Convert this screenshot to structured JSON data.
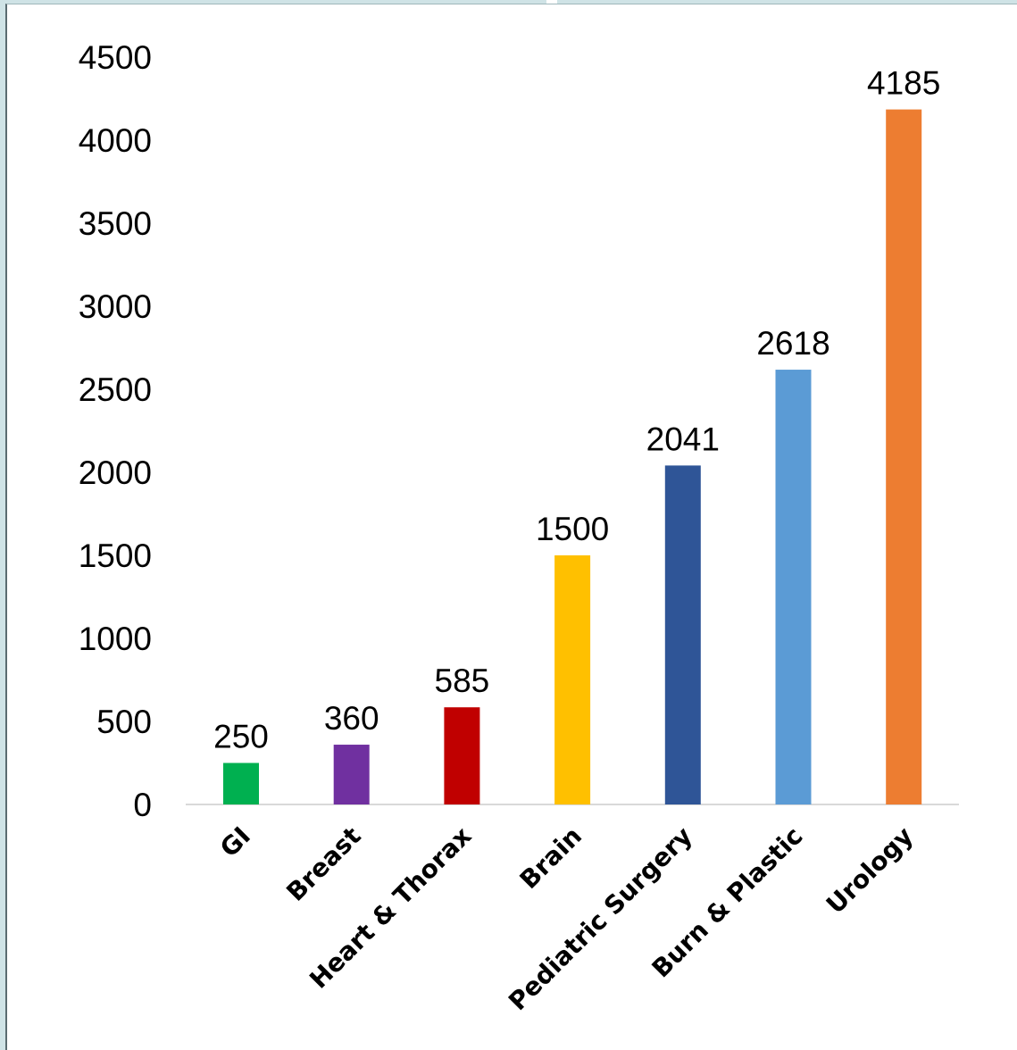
{
  "chart_data": {
    "type": "bar",
    "title": "",
    "xlabel": "",
    "ylabel": "",
    "categories": [
      "GI",
      "Breast",
      "Heart & Thorax",
      "Brain",
      "Pediatric Surgery",
      "Burn & Plastic",
      "Urology"
    ],
    "values": [
      250,
      360,
      585,
      1500,
      2041,
      2618,
      4185
    ],
    "data_labels": [
      "250",
      "360",
      "585",
      "1500",
      "2041",
      "2618",
      "4185"
    ],
    "colors": [
      "#00b050",
      "#7030a0",
      "#c00000",
      "#ffc000",
      "#2f5597",
      "#5b9bd5",
      "#ed7d31"
    ],
    "ylim": [
      0,
      4500
    ],
    "yticks": [
      "0",
      "500",
      "1000",
      "1500",
      "2000",
      "2500",
      "3000",
      "3500",
      "4000",
      "4500"
    ],
    "grid": false,
    "legend": "none"
  }
}
